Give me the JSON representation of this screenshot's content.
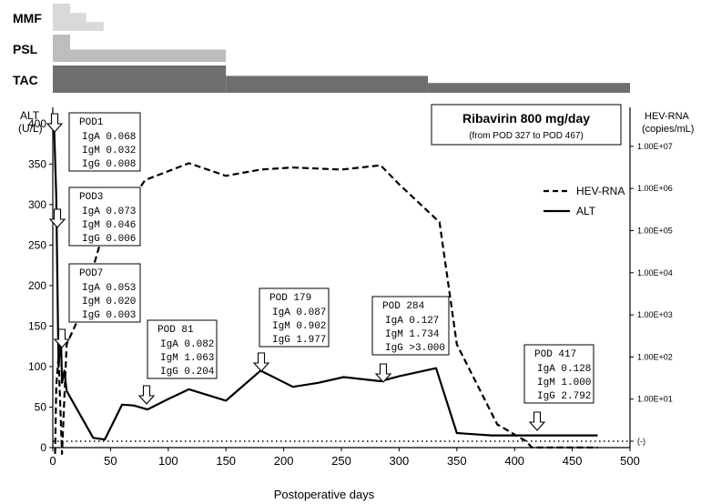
{
  "chart_data": {
    "type": "line",
    "xlabel": "Postoperative days",
    "xlim": [
      0,
      500
    ],
    "x_ticks": [
      "0",
      "50",
      "100",
      "150",
      "200",
      "250",
      "300",
      "350",
      "400",
      "450",
      "500"
    ],
    "left_axis": {
      "label_line1": "ALT",
      "label_line2": "(U/L)",
      "ylim": [
        0,
        420
      ],
      "ticks": [
        "0",
        "50",
        "100",
        "150",
        "200",
        "250",
        "300",
        "350",
        "400"
      ]
    },
    "right_axis": {
      "label_line1": "HEV-RNA",
      "label_line2": "(copies/mL)",
      "scale": "log10",
      "ticks": [
        {
          "label": "(-)",
          "log": 0
        },
        {
          "label": "1.00E+01",
          "log": 1
        },
        {
          "label": "1.00E+02",
          "log": 2
        },
        {
          "label": "1.00E+03",
          "log": 3
        },
        {
          "label": "1.00E+04",
          "log": 4
        },
        {
          "label": "1.00E+05",
          "log": 5
        },
        {
          "label": "1.00E+06",
          "log": 6
        },
        {
          "label": "1.00E+07",
          "log": 7
        }
      ]
    },
    "series": [
      {
        "name": "ALT",
        "axis": "left",
        "style": "solid",
        "points": [
          [
            1,
            400
          ],
          [
            3,
            310
          ],
          [
            5,
            100
          ],
          [
            7,
            140
          ],
          [
            8,
            80
          ],
          [
            10,
            95
          ],
          [
            12,
            70
          ],
          [
            35,
            12
          ],
          [
            45,
            10
          ],
          [
            60,
            53
          ],
          [
            70,
            52
          ],
          [
            82,
            47
          ],
          [
            100,
            60
          ],
          [
            118,
            72
          ],
          [
            150,
            58
          ],
          [
            180,
            95
          ],
          [
            208,
            75
          ],
          [
            230,
            80
          ],
          [
            252,
            87
          ],
          [
            284,
            82
          ],
          [
            300,
            88
          ],
          [
            332,
            98
          ],
          [
            350,
            18
          ],
          [
            380,
            15
          ],
          [
            400,
            15
          ],
          [
            472,
            15
          ]
        ]
      },
      {
        "name": "HEV-RNA",
        "axis": "right",
        "style": "dashed",
        "points": [
          [
            2,
            -0.3
          ],
          [
            3,
            1.3
          ],
          [
            5,
            2.0
          ],
          [
            8,
            -0.3
          ],
          [
            12,
            2.3
          ],
          [
            22,
            2.9
          ],
          [
            40,
            4.6
          ],
          [
            55,
            5.2
          ],
          [
            80,
            6.2
          ],
          [
            118,
            6.6
          ],
          [
            150,
            6.3
          ],
          [
            180,
            6.45
          ],
          [
            208,
            6.5
          ],
          [
            250,
            6.45
          ],
          [
            284,
            6.55
          ],
          [
            300,
            6.1
          ],
          [
            335,
            5.2
          ],
          [
            350,
            2.3
          ],
          [
            385,
            0.4
          ],
          [
            410,
            0
          ],
          [
            415,
            -0.15
          ],
          [
            472,
            -0.15
          ]
        ]
      }
    ],
    "cutoff_line": {
      "log": 0,
      "style": "dotted"
    },
    "legend": {
      "placement": "right-center",
      "entries": [
        "HEV-RNA",
        "ALT"
      ]
    },
    "annotation_box": {
      "title": "Ribavirin 800 mg/day",
      "subtitle": "(from POD 327 to POD 467)",
      "placement": "top-right"
    },
    "pod_labels": [
      {
        "title": "POD1",
        "iga": "IgA 0.068",
        "igm": "IgM 0.032",
        "igg": "IgG 0.008",
        "day": 1
      },
      {
        "title": "POD3",
        "iga": "IgA 0.073",
        "igm": "IgM 0.046",
        "igg": "IgG 0.006",
        "day": 3
      },
      {
        "title": "POD7",
        "iga": "IgA 0.053",
        "igm": "IgM 0.020",
        "igg": "IgG 0.003",
        "day": 7
      },
      {
        "title": "POD 81",
        "iga": "IgA 0.082",
        "igm": "IgM 1.063",
        "igg": "IgG 0.204",
        "day": 81
      },
      {
        "title": "POD 179",
        "iga": "IgA 0.087",
        "igm": "IgM 0.902",
        "igg": "IgG 1.977",
        "day": 179
      },
      {
        "title": "POD 284",
        "iga": "IgA 0.127",
        "igm": "IgM 1.734",
        "igg": "IgG >3.000",
        "day": 284
      },
      {
        "title": "POD 417",
        "iga": "IgA 0.128",
        "igm": "IgM 1.000",
        "igg": "IgG 2.792",
        "day": 417
      }
    ],
    "drug_bars": [
      {
        "label": "MMF",
        "color": "#d9d9d9",
        "segments": [
          {
            "start": 0,
            "end": 15,
            "level": 1.0
          },
          {
            "start": 15,
            "end": 29,
            "level": 0.66
          },
          {
            "start": 29,
            "end": 44,
            "level": 0.33
          }
        ]
      },
      {
        "label": "PSL",
        "color": "#bdbdbd",
        "segments": [
          {
            "start": 0,
            "end": 15,
            "level": 1.0
          },
          {
            "start": 15,
            "end": 150,
            "level": 0.45
          }
        ]
      },
      {
        "label": "TAC",
        "color": "#6e6e6e",
        "segments": [
          {
            "start": 0,
            "end": 150,
            "level": 1.0
          },
          {
            "start": 150,
            "end": 325,
            "level": 0.62
          },
          {
            "start": 325,
            "end": 500,
            "level": 0.36
          }
        ]
      }
    ]
  }
}
